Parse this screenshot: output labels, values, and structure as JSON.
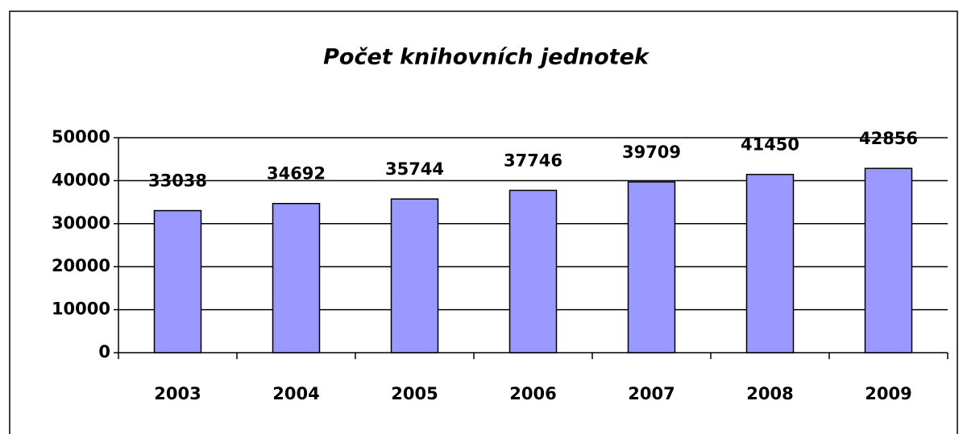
{
  "chart_data": {
    "type": "bar",
    "title": "Počet knihovních jednotek",
    "categories": [
      "2003",
      "2004",
      "2005",
      "2006",
      "2007",
      "2008",
      "2009"
    ],
    "values": [
      33038,
      34692,
      35744,
      37746,
      39709,
      41450,
      42856
    ],
    "color": "#9999ff",
    "ylim": [
      0,
      50000
    ],
    "yticks": [
      0,
      10000,
      20000,
      30000,
      40000,
      50000
    ],
    "grid": true
  }
}
